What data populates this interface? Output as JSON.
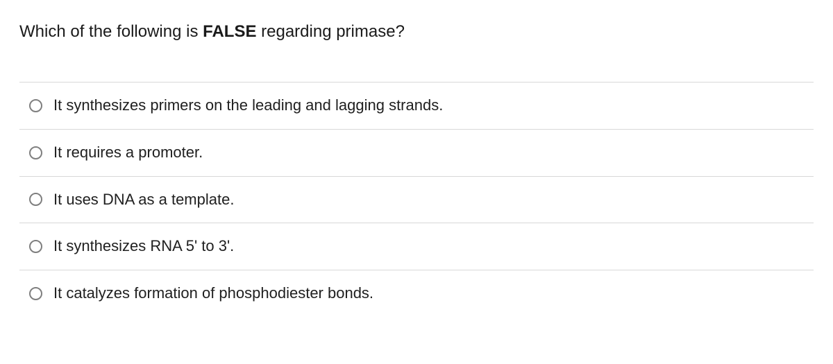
{
  "question": {
    "prefix": "Which of the following is ",
    "bold": "FALSE",
    "suffix": " regarding primase?"
  },
  "options": [
    {
      "label": "It synthesizes primers on the leading and lagging strands."
    },
    {
      "label": "It requires a promoter."
    },
    {
      "label": "It uses DNA as a template."
    },
    {
      "label": "It synthesizes RNA 5' to 3'."
    },
    {
      "label": "It catalyzes formation of phosphodiester bonds."
    }
  ],
  "colors": {
    "text": "#202020",
    "divider": "#d8d8d8",
    "radio_border": "#7f7f7f",
    "background": "#ffffff"
  },
  "typography": {
    "question_fontsize": 24,
    "option_fontsize": 22
  }
}
